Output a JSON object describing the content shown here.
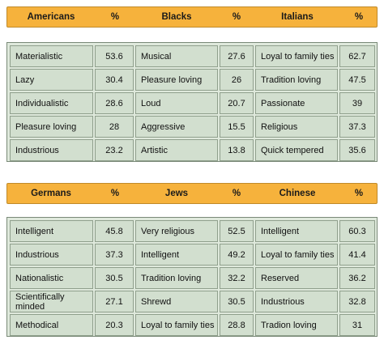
{
  "table1": {
    "headers": [
      "Americans",
      "%",
      "Blacks",
      "%",
      "Italians",
      "%"
    ],
    "rows": [
      [
        "Materialistic",
        "53.6",
        "Musical",
        "27.6",
        "Loyal to family ties",
        "62.7"
      ],
      [
        "Lazy",
        "30.4",
        "Pleasure loving",
        "26",
        "Tradition loving",
        "47.5"
      ],
      [
        "Individualistic",
        "28.6",
        "Loud",
        "20.7",
        "Passionate",
        "39"
      ],
      [
        "Pleasure loving",
        "28",
        "Aggressive",
        "15.5",
        "Religious",
        "37.3"
      ],
      [
        "Industrious",
        "23.2",
        "Artistic",
        "13.8",
        "Quick tempered",
        "35.6"
      ]
    ]
  },
  "table2": {
    "headers": [
      "Germans",
      "%",
      "Jews",
      "%",
      "Chinese",
      "%"
    ],
    "rows": [
      [
        "Intelligent",
        "45.8",
        "Very religious",
        "52.5",
        "Intelligent",
        "60.3"
      ],
      [
        "Industrious",
        "37.3",
        "Intelligent",
        "49.2",
        "Loyal to family ties",
        "41.4"
      ],
      [
        "Nationalistic",
        "30.5",
        "Tradition loving",
        "32.2",
        "Reserved",
        "36.2"
      ],
      [
        "Scientifically minded",
        "27.1",
        "Shrewd",
        "30.5",
        "Industrious",
        "32.8"
      ],
      [
        "Methodical",
        "20.3",
        "Loyal to family ties",
        "28.8",
        "Tradion loving",
        "31"
      ]
    ]
  }
}
